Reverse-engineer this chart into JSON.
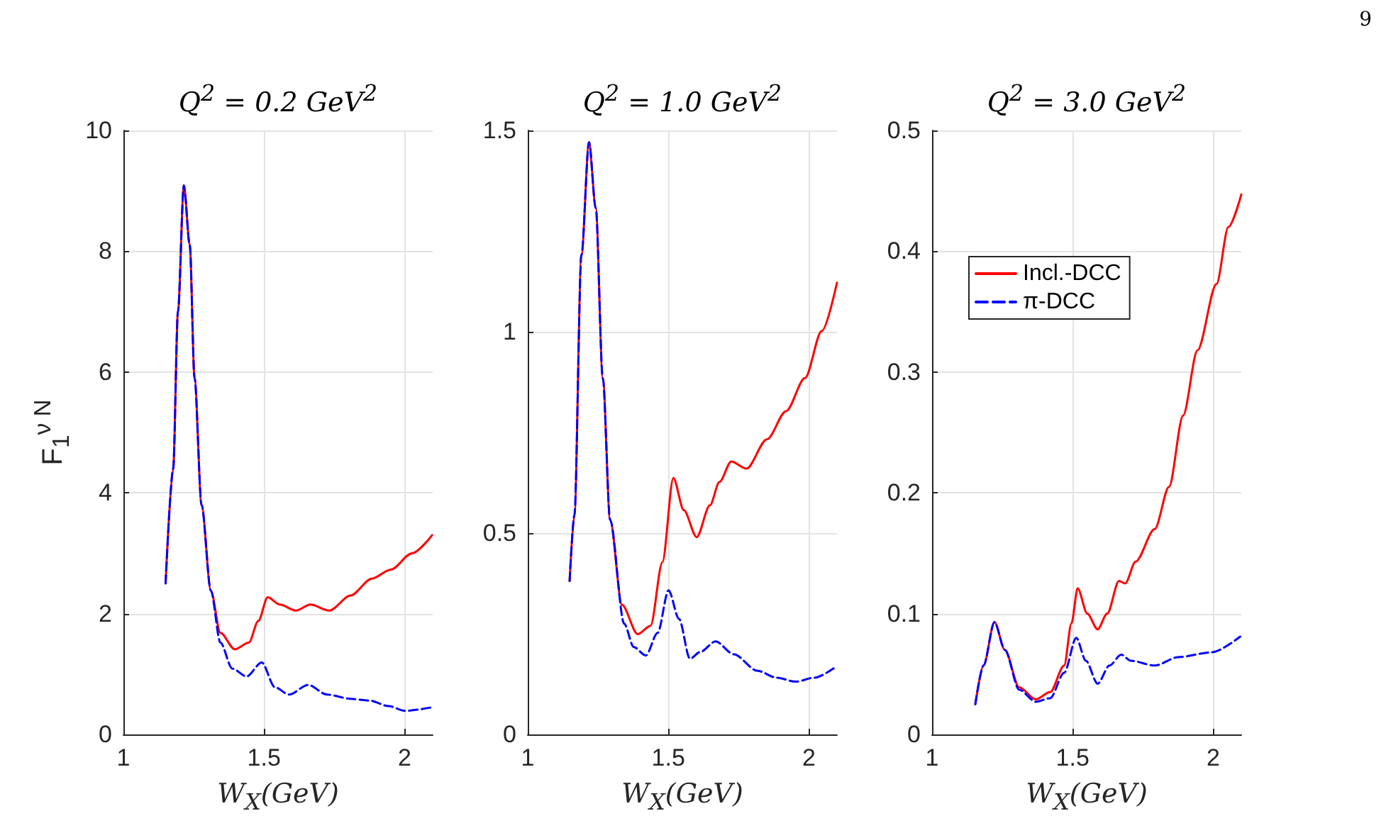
{
  "chart_data": [
    {
      "type": "line",
      "title": "Q$^{2}$ = 0.2   GeV$^{2}$",
      "xlabel": "W$_{X}$(GeV)",
      "ylabel": "F$_{1}$$^{ν N}$",
      "annotations": [
        "9"
      ],
      "xlim": [
        1,
        2.1
      ],
      "xticks": [
        1,
        1.5,
        2
      ],
      "ylim": [
        0,
        10
      ],
      "yticks": [
        0,
        2,
        4,
        6,
        8,
        10
      ],
      "grid": true,
      "legend": false,
      "marker": "none",
      "series": [
        {
          "color": "#ff0000",
          "line_style": "solid",
          "x": [
            1.15,
            1.177,
            1.194,
            1.215,
            1.236,
            1.253,
            1.278,
            1.311,
            1.345,
            1.396,
            1.446,
            1.48,
            1.513,
            1.556,
            1.614,
            1.665,
            1.732,
            1.808,
            1.884,
            1.951,
            2.027,
            2.098
          ],
          "values": [
            2.5,
            4.4,
            7.0,
            9.09,
            8.1,
            5.9,
            3.8,
            2.38,
            1.68,
            1.41,
            1.52,
            1.88,
            2.27,
            2.15,
            2.05,
            2.15,
            2.05,
            2.3,
            2.58,
            2.73,
            3.0,
            3.3
          ]
        },
        {
          "color": "#0000ff",
          "line_style": "dashed",
          "x": [
            1.15,
            1.177,
            1.194,
            1.215,
            1.236,
            1.253,
            1.278,
            1.311,
            1.345,
            1.387,
            1.438,
            1.492,
            1.539,
            1.589,
            1.657,
            1.724,
            1.808,
            1.875,
            1.943,
            2.002,
            2.098
          ],
          "values": [
            2.5,
            4.4,
            7.0,
            9.09,
            8.1,
            5.9,
            3.8,
            2.38,
            1.52,
            1.09,
            0.96,
            1.19,
            0.78,
            0.66,
            0.82,
            0.66,
            0.59,
            0.56,
            0.47,
            0.39,
            0.45
          ]
        }
      ]
    },
    {
      "type": "line",
      "title": "Q$^{2}$ = 1.0   GeV$^{2}$",
      "xlabel": "W$_{X}$(GeV)",
      "xlim": [
        1,
        2.1
      ],
      "xticks": [
        1,
        1.5,
        2
      ],
      "ylim": [
        0,
        1.5
      ],
      "yticks": [
        0,
        0.5,
        1,
        1.5
      ],
      "grid": true,
      "legend": false,
      "marker": "none",
      "series": [
        {
          "color": "#ff0000",
          "line_style": "solid",
          "x": [
            1.149,
            1.166,
            1.191,
            1.218,
            1.242,
            1.267,
            1.293,
            1.335,
            1.391,
            1.437,
            1.479,
            1.518,
            1.555,
            1.601,
            1.648,
            1.682,
            1.724,
            1.778,
            1.851,
            1.919,
            1.986,
            2.046,
            2.1
          ],
          "values": [
            0.381,
            0.545,
            1.19,
            1.471,
            1.307,
            0.885,
            0.533,
            0.322,
            0.249,
            0.27,
            0.428,
            0.637,
            0.557,
            0.49,
            0.569,
            0.627,
            0.678,
            0.66,
            0.733,
            0.803,
            0.885,
            1.002,
            1.122
          ]
        },
        {
          "color": "#0000ff",
          "line_style": "dashed",
          "x": [
            1.149,
            1.166,
            1.191,
            1.218,
            1.242,
            1.267,
            1.293,
            1.343,
            1.377,
            1.42,
            1.462,
            1.501,
            1.538,
            1.577,
            1.614,
            1.668,
            1.733,
            1.817,
            1.885,
            1.953,
            2.02,
            2.088
          ],
          "values": [
            0.381,
            0.545,
            1.19,
            1.471,
            1.307,
            0.885,
            0.533,
            0.275,
            0.217,
            0.196,
            0.252,
            0.358,
            0.287,
            0.188,
            0.205,
            0.231,
            0.199,
            0.158,
            0.141,
            0.131,
            0.141,
            0.164
          ]
        }
      ]
    },
    {
      "type": "line",
      "title": "Q$^{2}$ = 3.0   GeV$^{2}$",
      "xlabel": "W$_{X}$(GeV)",
      "xlim": [
        1,
        2.1
      ],
      "xticks": [
        1,
        1.5,
        2
      ],
      "ylim": [
        0,
        0.5
      ],
      "yticks": [
        0,
        0.1,
        0.2,
        0.3,
        0.4,
        0.5
      ],
      "grid": true,
      "legend": "top left",
      "marker": "none",
      "series": [
        {
          "name": "Incl.-DCC",
          "color": "#ff0000",
          "line_style": "solid",
          "x": [
            1.154,
            1.183,
            1.222,
            1.259,
            1.31,
            1.369,
            1.42,
            1.47,
            1.496,
            1.518,
            1.552,
            1.589,
            1.623,
            1.665,
            1.687,
            1.724,
            1.792,
            1.843,
            1.893,
            1.944,
            2.012,
            2.054,
            2.1
          ],
          "values": [
            0.025,
            0.057,
            0.093,
            0.07,
            0.039,
            0.029,
            0.035,
            0.057,
            0.092,
            0.121,
            0.1,
            0.087,
            0.1,
            0.127,
            0.125,
            0.143,
            0.17,
            0.205,
            0.264,
            0.318,
            0.373,
            0.42,
            0.447
          ]
        },
        {
          "name": "π-DCC",
          "color": "#0000ff",
          "line_style": "dashed",
          "x": [
            1.154,
            1.183,
            1.222,
            1.259,
            1.31,
            1.369,
            1.42,
            1.47,
            1.513,
            1.547,
            1.589,
            1.631,
            1.673,
            1.707,
            1.792,
            1.876,
            1.995,
            2.096
          ],
          "values": [
            0.025,
            0.057,
            0.093,
            0.07,
            0.037,
            0.027,
            0.03,
            0.051,
            0.08,
            0.061,
            0.042,
            0.057,
            0.066,
            0.061,
            0.057,
            0.064,
            0.068,
            0.081
          ]
        }
      ]
    }
  ]
}
